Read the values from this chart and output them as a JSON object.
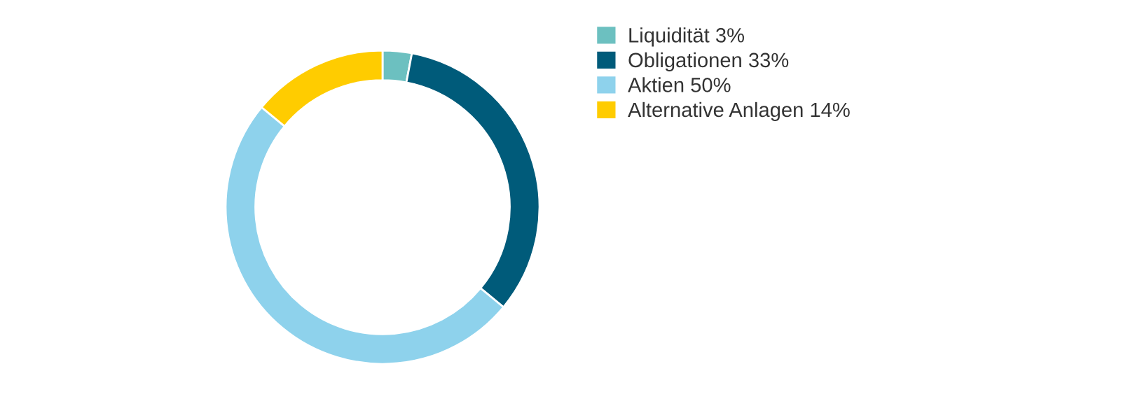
{
  "chart_data": {
    "type": "donut",
    "categories": [
      "Liquidität 3%",
      "Obligationen 33%",
      "Aktien 50%",
      "Alternative Anlagen 14%"
    ],
    "values": [
      3,
      33,
      50,
      14
    ],
    "colors": [
      "#6cc0c0",
      "#005b7a",
      "#8ed2ec",
      "#ffcc00"
    ],
    "legend": "right"
  }
}
